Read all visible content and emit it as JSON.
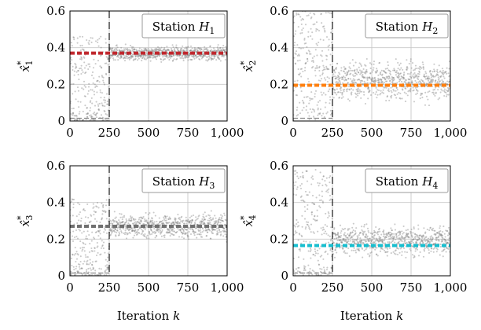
{
  "chart_data": [
    {
      "type": "scatter",
      "station_label": "Station",
      "station_symbol": "H",
      "station_index": "1",
      "ylabel_base": "x̂",
      "ylabel_sub": "1",
      "ylabel_sup": "*",
      "xlabel_text": "",
      "xlabel_var": "",
      "xticks": [
        "0",
        "250",
        "500",
        "750",
        "1,000"
      ],
      "yticks": [
        "0",
        "0.2",
        "0.4",
        "0.6"
      ],
      "xlim": [
        0,
        1000
      ],
      "ylim": [
        0,
        0.6
      ],
      "reference_value": 0.37,
      "reference_color": "#c0272d",
      "vline_x": 250,
      "point_color": "#808080",
      "scatter_stats": {
        "pre_center": 0.22,
        "pre_spread": 0.24,
        "post_center": 0.37,
        "post_spread": 0.03,
        "count": 1000
      }
    },
    {
      "type": "scatter",
      "station_label": "Station",
      "station_symbol": "H",
      "station_index": "2",
      "ylabel_base": "x̂",
      "ylabel_sub": "2",
      "ylabel_sup": "*",
      "xlabel_text": "",
      "xlabel_var": "",
      "xticks": [
        "0",
        "250",
        "500",
        "750",
        "1,000"
      ],
      "yticks": [
        "0",
        "0.2",
        "0.4",
        "0.6"
      ],
      "xlim": [
        0,
        1000
      ],
      "ylim": [
        0,
        0.6
      ],
      "reference_value": 0.195,
      "reference_color": "#ff7f0e",
      "vline_x": 250,
      "point_color": "#808080",
      "scatter_stats": {
        "pre_center": 0.32,
        "pre_spread": 0.28,
        "post_center": 0.22,
        "post_spread": 0.08,
        "count": 1000
      }
    },
    {
      "type": "scatter",
      "station_label": "Station",
      "station_symbol": "H",
      "station_index": "3",
      "ylabel_base": "x̂",
      "ylabel_sub": "3",
      "ylabel_sup": "*",
      "xlabel_text": "Iteration",
      "xlabel_var": "k",
      "xticks": [
        "0",
        "250",
        "500",
        "750",
        "1,000"
      ],
      "yticks": [
        "0",
        "0.2",
        "0.4",
        "0.6"
      ],
      "xlim": [
        0,
        1000
      ],
      "ylim": [
        0,
        0.6
      ],
      "reference_value": 0.27,
      "reference_color": "#707070",
      "vline_x": 250,
      "point_color": "#808080",
      "scatter_stats": {
        "pre_center": 0.2,
        "pre_spread": 0.22,
        "post_center": 0.27,
        "post_spread": 0.05,
        "count": 1000
      }
    },
    {
      "type": "scatter",
      "station_label": "Station",
      "station_symbol": "H",
      "station_index": "4",
      "ylabel_base": "x̂",
      "ylabel_sub": "4",
      "ylabel_sup": "*",
      "xlabel_text": "Iteration",
      "xlabel_var": "k",
      "xticks": [
        "0",
        "250",
        "500",
        "750",
        "1,000"
      ],
      "yticks": [
        "0",
        "0.2",
        "0.4",
        "0.6"
      ],
      "xlim": [
        0,
        1000
      ],
      "ylim": [
        0,
        0.6
      ],
      "reference_value": 0.165,
      "reference_color": "#17becf",
      "vline_x": 250,
      "point_color": "#808080",
      "scatter_stats": {
        "pre_center": 0.28,
        "pre_spread": 0.3,
        "post_center": 0.19,
        "post_spread": 0.06,
        "count": 1000
      }
    }
  ]
}
